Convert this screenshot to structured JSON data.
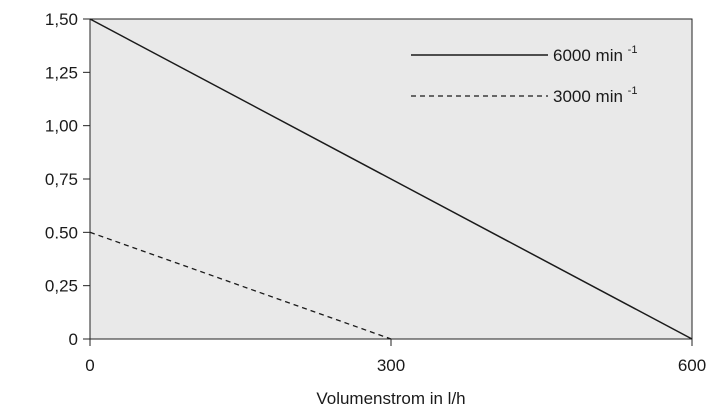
{
  "chart_data": {
    "type": "line",
    "xlabel": "Volumenstrom in l/h",
    "ylabel": "",
    "xlim": [
      0,
      600
    ],
    "ylim": [
      0,
      1.5
    ],
    "x_ticks": [
      0,
      300,
      600
    ],
    "x_tick_labels": [
      "0",
      "300",
      "600"
    ],
    "y_ticks": [
      0,
      0.25,
      0.5,
      0.75,
      1.0,
      1.25,
      1.5
    ],
    "y_tick_labels": [
      "0",
      "0,25",
      "0.50",
      "0,75",
      "1,00",
      "1,25",
      "1,50"
    ],
    "grid": false,
    "plot_background": "#e9e9e9",
    "legend_placement": "top-right",
    "series": [
      {
        "name": "6000 min",
        "name_superscript": "-1",
        "style": "solid",
        "color": "#1a1a1a",
        "x": [
          0,
          600
        ],
        "y": [
          1.5,
          0
        ]
      },
      {
        "name": "3000 min",
        "name_superscript": "-1",
        "style": "dashed",
        "color": "#1a1a1a",
        "x": [
          0,
          300
        ],
        "y": [
          0.5,
          0
        ]
      }
    ]
  }
}
